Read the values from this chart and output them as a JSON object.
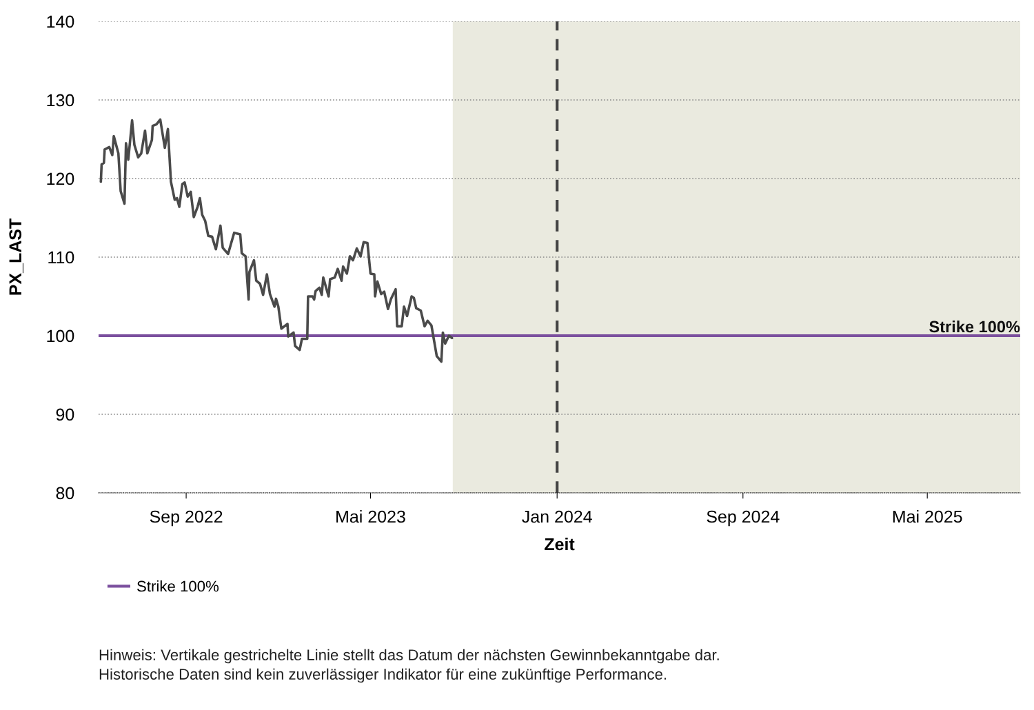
{
  "chart_data": {
    "type": "line",
    "xlabel": "Zeit",
    "ylabel": "PX_LAST",
    "xlim": [
      "2022-05-09",
      "2025-08-31"
    ],
    "ylim": [
      80,
      140
    ],
    "yticks": [
      80,
      90,
      100,
      110,
      120,
      130,
      140
    ],
    "xticks": [
      {
        "value": "2022-09-01",
        "label": "Sep 2022"
      },
      {
        "value": "2023-05-01",
        "label": "Mai 2023"
      },
      {
        "value": "2024-01-01",
        "label": "Jan 2024"
      },
      {
        "value": "2024-09-01",
        "label": "Sep 2024"
      },
      {
        "value": "2025-05-01",
        "label": "Mai 2025"
      }
    ],
    "grid": "y",
    "legend": "bottom",
    "line_style": "solid",
    "series": [
      {
        "color": "#4a4a4a",
        "x": [
          "2022-05-12",
          "2022-05-13",
          "2022-05-16",
          "2022-05-17",
          "2022-05-23",
          "2022-05-27",
          "2022-05-29",
          "2022-06-04",
          "2022-06-07",
          "2022-06-12",
          "2022-06-14",
          "2022-06-17",
          "2022-06-22",
          "2022-06-25",
          "2022-06-30",
          "2022-07-04",
          "2022-07-09",
          "2022-07-12",
          "2022-07-18",
          "2022-07-19",
          "2022-07-24",
          "2022-07-29",
          "2022-07-31",
          "2022-08-04",
          "2022-08-08",
          "2022-08-12",
          "2022-08-17",
          "2022-08-20",
          "2022-08-23",
          "2022-08-27",
          "2022-08-30",
          "2022-09-03",
          "2022-09-07",
          "2022-09-11",
          "2022-09-16",
          "2022-09-19",
          "2022-09-22",
          "2022-09-26",
          "2022-09-30",
          "2022-10-05",
          "2022-10-10",
          "2022-10-16",
          "2022-10-19",
          "2022-10-26",
          "2022-11-03",
          "2022-11-11",
          "2022-11-13",
          "2022-11-18",
          "2022-11-22",
          "2022-11-23",
          "2022-11-29",
          "2022-12-02",
          "2022-12-07",
          "2022-12-11",
          "2022-12-16",
          "2022-12-20",
          "2022-12-26",
          "2022-12-28",
          "2022-12-31",
          "2023-01-04",
          "2023-01-12",
          "2023-01-13",
          "2023-01-20",
          "2023-01-22",
          "2023-01-28",
          "2023-01-31",
          "2023-02-07",
          "2023-02-08",
          "2023-02-14",
          "2023-02-16",
          "2023-02-18",
          "2023-02-23",
          "2023-02-26",
          "2023-02-28",
          "2023-03-07",
          "2023-03-09",
          "2023-03-15",
          "2023-03-19",
          "2023-03-24",
          "2023-03-26",
          "2023-03-31",
          "2023-04-04",
          "2023-04-08",
          "2023-04-13",
          "2023-04-18",
          "2023-04-22",
          "2023-04-27",
          "2023-05-01",
          "2023-05-06",
          "2023-05-07",
          "2023-05-10",
          "2023-05-15",
          "2023-05-19",
          "2023-05-24",
          "2023-05-28",
          "2023-06-03",
          "2023-06-05",
          "2023-06-11",
          "2023-06-14",
          "2023-06-18",
          "2023-06-24",
          "2023-06-27",
          "2023-06-30",
          "2023-07-06",
          "2023-07-11",
          "2023-07-15",
          "2023-07-20",
          "2023-07-27",
          "2023-08-02",
          "2023-08-04",
          "2023-08-07",
          "2023-08-12",
          "2023-08-16"
        ],
        "values": [
          119.6,
          121.8,
          122,
          123.7,
          124,
          123,
          125.4,
          123.2,
          118.4,
          116.8,
          124.5,
          122.4,
          127.4,
          124.3,
          122.7,
          123.2,
          126.1,
          123.2,
          124.9,
          126.7,
          126.9,
          127.5,
          126.3,
          123.9,
          126.3,
          119.6,
          117.3,
          117.5,
          116.4,
          119.3,
          119.5,
          117.7,
          118.3,
          115.1,
          116.4,
          117.5,
          115.4,
          114.6,
          112.7,
          112.6,
          111,
          114,
          111.2,
          110.4,
          113.1,
          112.9,
          110.5,
          110.1,
          104.6,
          108.1,
          109.6,
          107,
          106.6,
          105.2,
          107.8,
          105.3,
          103.7,
          104.7,
          103.7,
          100.9,
          101.5,
          99.9,
          100.4,
          98.7,
          98.2,
          99.6,
          99.6,
          105,
          105,
          104.6,
          105.7,
          106.1,
          105.2,
          107.4,
          105,
          107.2,
          107.4,
          108.5,
          107,
          108.8,
          107.9,
          110.1,
          109.6,
          111.1,
          110.1,
          111.9,
          111.8,
          107.9,
          107.8,
          105,
          106.9,
          105.3,
          105.6,
          103.4,
          104.7,
          105.9,
          101.2,
          101.2,
          103.7,
          102.5,
          105,
          104.8,
          103.5,
          103.2,
          101.2,
          101.9,
          101.3,
          97.4,
          96.7,
          100.4,
          99,
          100,
          99.7
        ]
      }
    ],
    "ref_lines": [
      {
        "axis": "y",
        "value": 100,
        "label": "Strike 100%",
        "color": "#7b4f9e",
        "line_style": "solid"
      },
      {
        "axis": "x",
        "value": "2024-01-01",
        "color": "#444444",
        "line_style": "dashed"
      }
    ],
    "bands": [
      {
        "axis": "x",
        "from": "2023-08-17",
        "to": "2025-08-31",
        "color": "#eaeadf"
      }
    ],
    "annotations": [
      "Hinweis: Vertikale gestrichelte Linie stellt das Datum der nächsten Gewinnbekanntgabe dar.",
      "Historische Daten sind kein zuverlässiger Indikator für eine zukünftige Performance."
    ]
  }
}
